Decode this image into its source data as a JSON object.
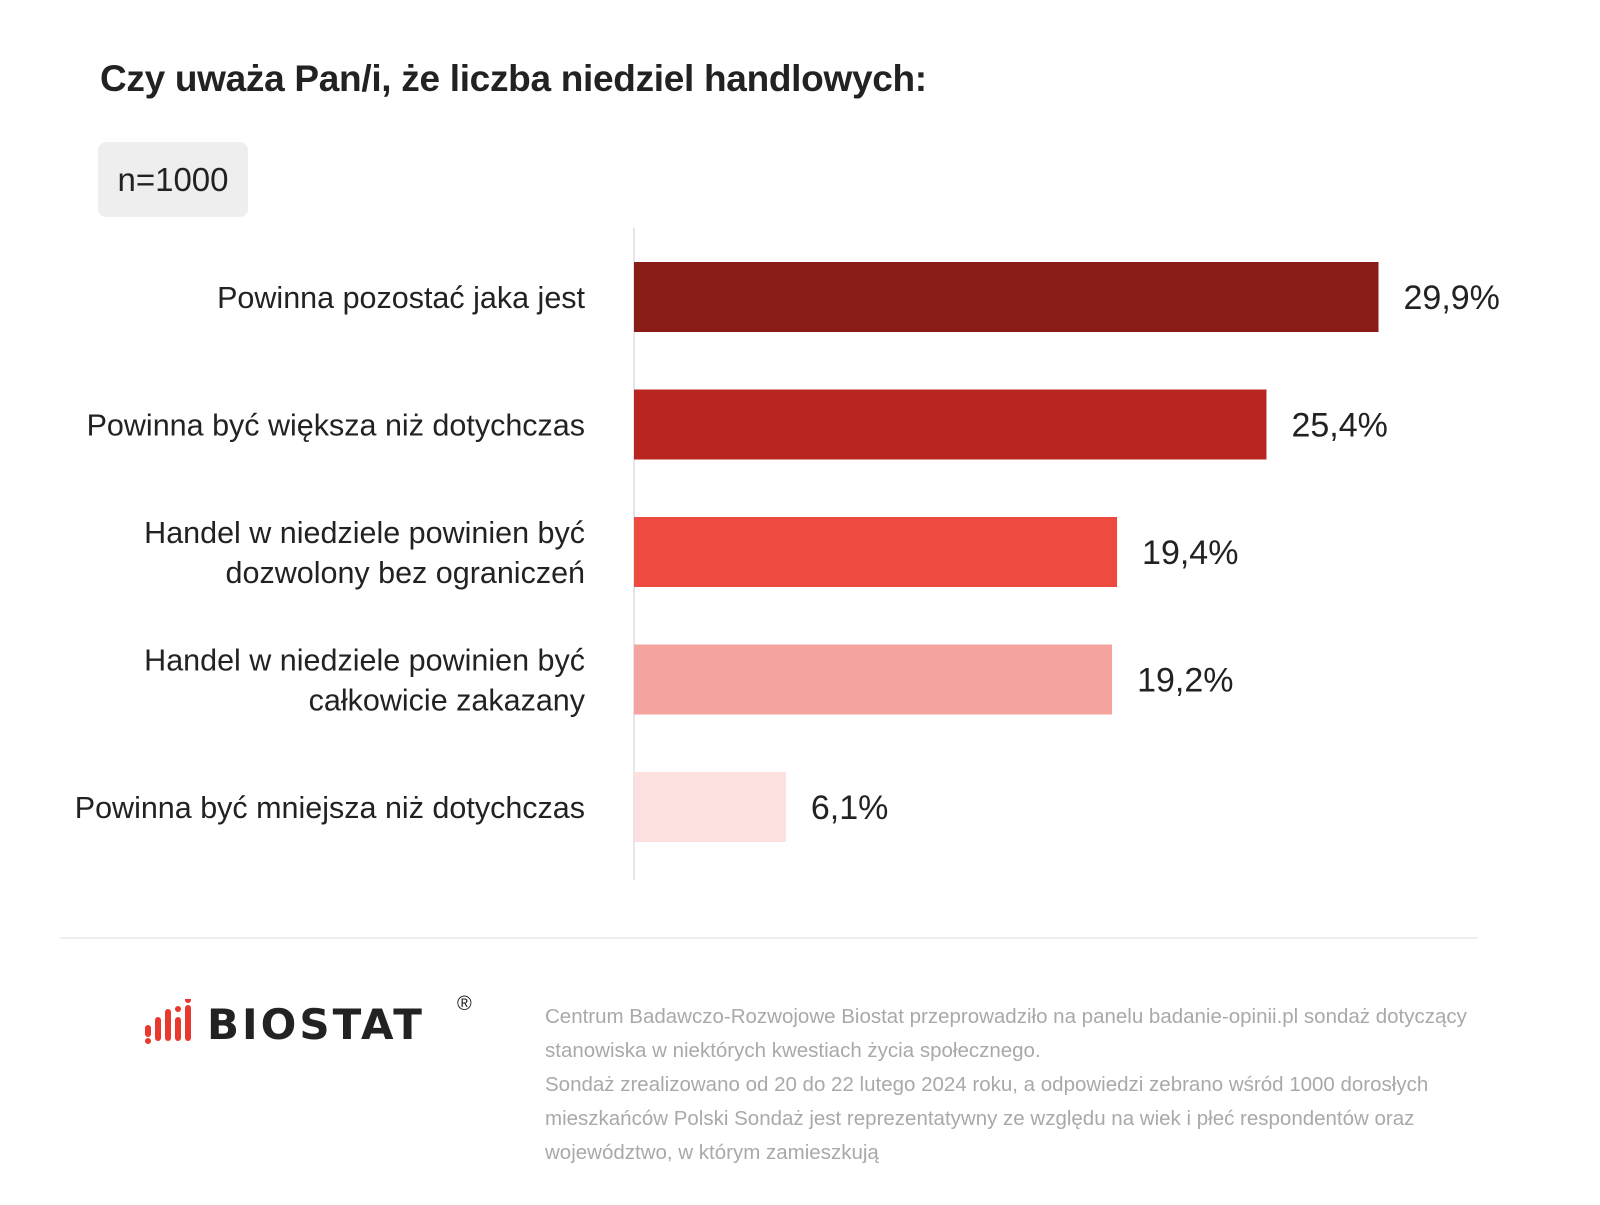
{
  "title": "Czy uważa Pan/i, że liczba niedziel handlowych:",
  "sample": "n=1000",
  "chart_data": {
    "type": "bar",
    "orientation": "horizontal",
    "title": "Czy uważa Pan/i, że liczba niedziel handlowych:",
    "categories": [
      "Powinna pozostać jaka jest",
      "Powinna być większa niż  dotychczas",
      "Handel w niedziele powinien być dozwolony bez ograniczeń",
      "Handel w niedziele powinien być całkowicie zakazany",
      "Powinna być mniejsza niż  dotychczas"
    ],
    "category_lines": [
      [
        "Powinna pozostać jaka jest"
      ],
      [
        "Powinna być większa niż  dotychczas"
      ],
      [
        "Handel w niedziele powinien być",
        "dozwolony bez ograniczeń"
      ],
      [
        "Handel w niedziele powinien być",
        "całkowicie zakazany"
      ],
      [
        "Powinna być mniejsza niż  dotychczas"
      ]
    ],
    "values": [
      29.9,
      25.4,
      19.4,
      19.2,
      6.1
    ],
    "value_labels": [
      "29,9%",
      "25,4%",
      "19,4%",
      "19,2%",
      "6,1%"
    ],
    "colors": [
      "#8a1c17",
      "#b9261f",
      "#ee4b40",
      "#f5a39e",
      "#fbe0df"
    ],
    "unit": "%",
    "grid": false,
    "legend": "none"
  },
  "logo": {
    "text": "BIOSTAT",
    "registered": "®",
    "accent_color": "#e8392e"
  },
  "footnote": {
    "line1": "Centrum Badawczo-Rozwojowe Biostat przeprowadziło na panelu badanie-opinii.pl sondaż dotyczący stanowiska w niektórych kwestiach życia społecznego.",
    "line2": "Sondaż zrealizowano od 20 do 22 lutego 2024 roku, a odpowiedzi zebrano wśród 1000 dorosłych mieszkańców Polski Sondaż jest reprezentatywny ze względu na wiek i płeć respondentów oraz województwo, w którym zamieszkują"
  }
}
